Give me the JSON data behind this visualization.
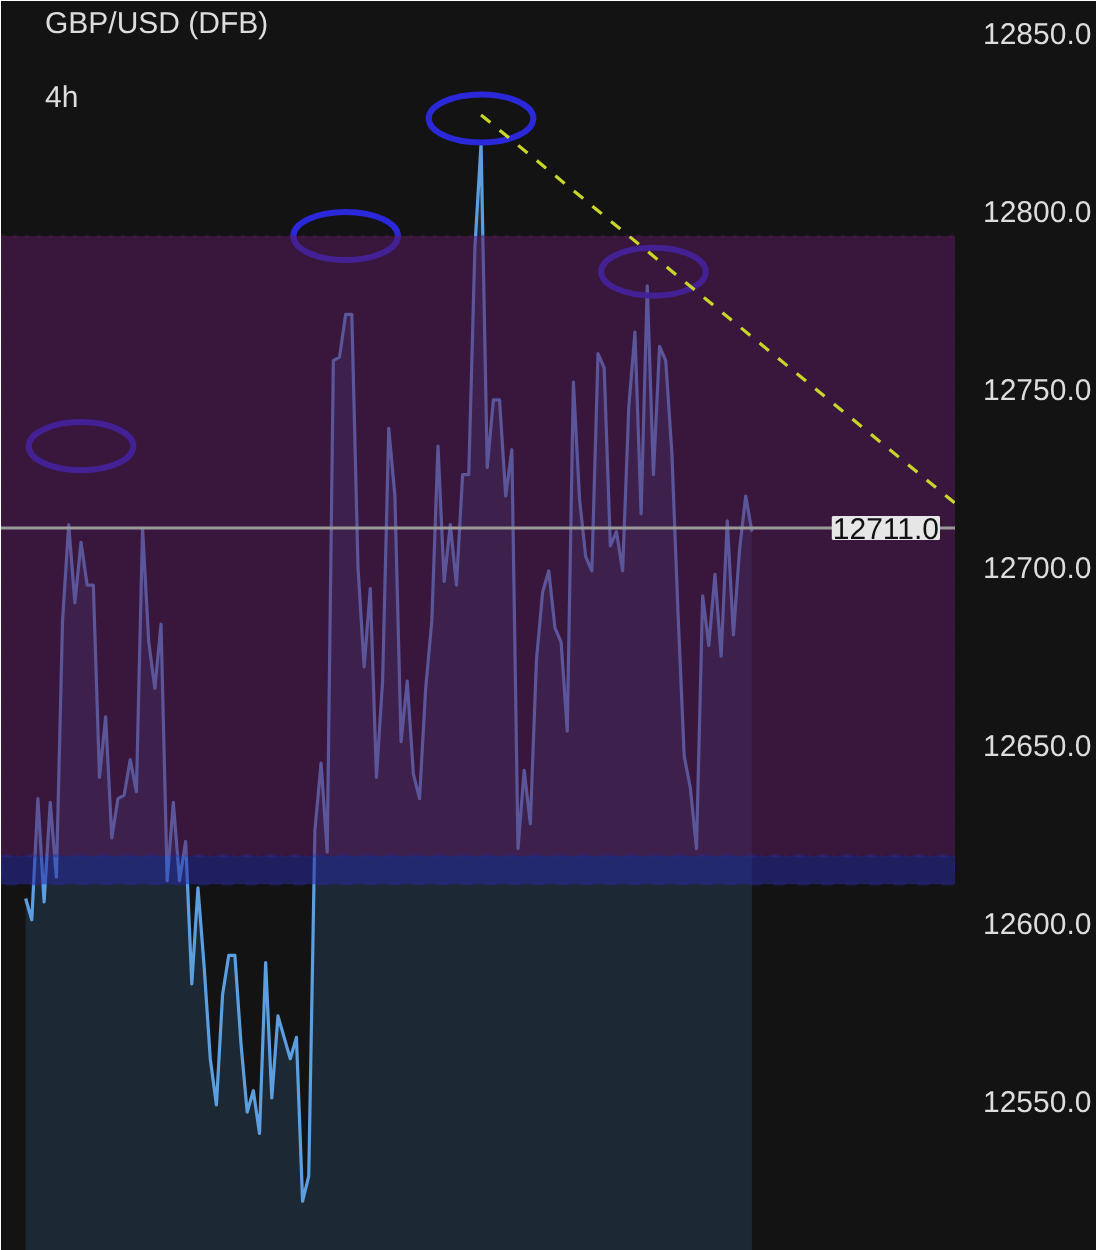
{
  "chart_data": {
    "type": "area",
    "title": "GBP/USD (DFB)",
    "subtitle": "4h",
    "categories": [
      null,
      null,
      null,
      null,
      null,
      null,
      null,
      null,
      null,
      null,
      null,
      null,
      null,
      null,
      null,
      null,
      null,
      null,
      null,
      null,
      null,
      null,
      null,
      null,
      null,
      null,
      null,
      null,
      null,
      null,
      null,
      null,
      null,
      null,
      null,
      null,
      null,
      null,
      null,
      null,
      null,
      null,
      null,
      null,
      null,
      null,
      null,
      null,
      null,
      null,
      null,
      null,
      null,
      null,
      null,
      null,
      null,
      null,
      null,
      null,
      null,
      null,
      null,
      null,
      null,
      null,
      null,
      null,
      null,
      null,
      null,
      null,
      null,
      null,
      null,
      null,
      null,
      null,
      null,
      null,
      null,
      null,
      null,
      null,
      null,
      null,
      null,
      null,
      null,
      null,
      null,
      null,
      null,
      null,
      null,
      null,
      null,
      null,
      null,
      null,
      null,
      null,
      null,
      null,
      null,
      null,
      null,
      null,
      null,
      null,
      null,
      null,
      null,
      null,
      null,
      null,
      null,
      null,
      null
    ],
    "series": [
      {
        "color": "#5b9fe0",
        "values": [
          12607,
          12601,
          12635,
          12606,
          12634,
          12613,
          12685,
          12712,
          12690,
          12707,
          12695,
          12695,
          12641,
          12658,
          12624,
          12635,
          12636,
          12646,
          12637,
          12711,
          12679,
          12666,
          12684,
          12612,
          12634,
          12612,
          12623,
          12583,
          12610,
          12588,
          12562,
          12549,
          12580,
          12591,
          12591,
          12566,
          12547,
          12553,
          12541,
          12589,
          12551,
          12574,
          12568,
          12562,
          12568,
          12522,
          12529,
          12626,
          12645,
          12620,
          12758,
          12759,
          12771,
          12771,
          12700,
          12672,
          12694,
          12641,
          12668,
          12739,
          12720,
          12651,
          12668,
          12642,
          12635,
          12666,
          12685,
          12734,
          12696,
          12712,
          12695,
          12726,
          12726,
          12790,
          12819,
          12728,
          12747,
          12747,
          12720,
          12733,
          12621,
          12643,
          12628,
          12674,
          12693,
          12699,
          12683,
          12679,
          12654,
          12752,
          12719,
          12703,
          12699,
          12760,
          12756,
          12706,
          12710,
          12699,
          12745,
          12766,
          12715,
          12779,
          12726,
          12762,
          12758,
          12732,
          12687,
          12647,
          12638,
          12621,
          12692,
          12678,
          12698,
          12675,
          12713,
          12681,
          12705,
          12720,
          12710
        ]
      }
    ],
    "ylim": [
      12508,
      12859
    ],
    "yticks": [
      {
        "value": 12550,
        "label": "12550.0"
      },
      {
        "value": 12600,
        "label": "12600.0"
      },
      {
        "value": 12650,
        "label": "12650.0"
      },
      {
        "value": 12700,
        "label": "12700.0"
      },
      {
        "value": 12750,
        "label": "12750.0"
      },
      {
        "value": 12800,
        "label": "12800.0"
      },
      {
        "value": 12850,
        "label": "12850.0"
      }
    ],
    "tick_labels": "y",
    "ref_lines": [
      {
        "axis": "y",
        "value": 12711,
        "label": "12711.0",
        "color": "#9a9a9a"
      }
    ],
    "bands": [
      {
        "axis": "y",
        "from": 12619,
        "to": 12793,
        "color": "#5a1a5f"
      },
      {
        "axis": "y",
        "from": 12611,
        "to": 12619,
        "color": "#2a2aa0"
      }
    ]
  }
}
